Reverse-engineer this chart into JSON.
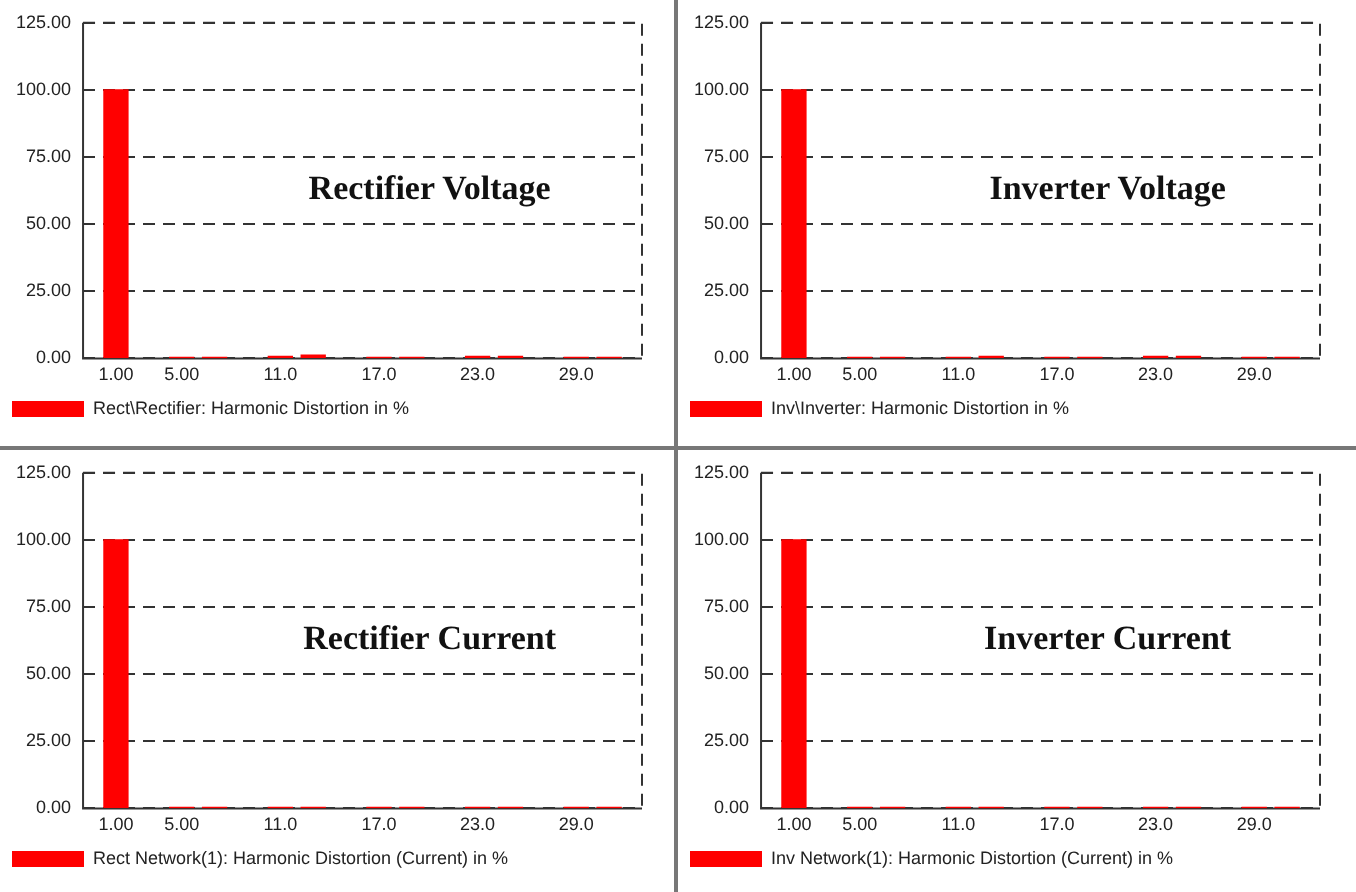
{
  "chart_data": [
    {
      "type": "bar",
      "title": "Rectifier Voltage",
      "x": [
        1,
        5,
        7,
        11,
        13,
        17,
        19,
        23,
        25,
        29,
        31
      ],
      "series": [
        {
          "name": "Rect\\Rectifier: Harmonic Distortion in %",
          "color": "#ff0000",
          "values": [
            100,
            0.3,
            0.3,
            0.7,
            1.2,
            0.3,
            0.3,
            0.7,
            0.7,
            0.3,
            0.3
          ]
        }
      ],
      "xlim": [
        -1,
        33
      ],
      "xticks": [
        {
          "value": 1,
          "label": "1.00"
        },
        {
          "value": 5,
          "label": "5.00"
        },
        {
          "value": 11,
          "label": "11.0"
        },
        {
          "value": 17,
          "label": "17.0"
        },
        {
          "value": 23,
          "label": "23.0"
        },
        {
          "value": 29,
          "label": "29.0"
        }
      ],
      "ylim": [
        0,
        125
      ],
      "yticks": [
        {
          "value": 0,
          "label": "0.00"
        },
        {
          "value": 25,
          "label": "25.00"
        },
        {
          "value": 50,
          "label": "50.00"
        },
        {
          "value": 75,
          "label": "75.00"
        },
        {
          "value": 100,
          "label": "100.00"
        },
        {
          "value": 125,
          "label": "125.00"
        }
      ],
      "grid": "y",
      "legend": "bottom left"
    },
    {
      "type": "bar",
      "title": "Inverter Voltage",
      "x": [
        1,
        5,
        7,
        11,
        13,
        17,
        19,
        23,
        25,
        29,
        31
      ],
      "series": [
        {
          "name": "Inv\\Inverter: Harmonic Distortion in %",
          "color": "#ff0000",
          "values": [
            100,
            0.3,
            0.3,
            0.3,
            0.7,
            0.3,
            0.3,
            0.7,
            0.7,
            0.3,
            0.3
          ]
        }
      ],
      "xlim": [
        -1,
        33
      ],
      "xticks": [
        {
          "value": 1,
          "label": "1.00"
        },
        {
          "value": 5,
          "label": "5.00"
        },
        {
          "value": 11,
          "label": "11.0"
        },
        {
          "value": 17,
          "label": "17.0"
        },
        {
          "value": 23,
          "label": "23.0"
        },
        {
          "value": 29,
          "label": "29.0"
        }
      ],
      "ylim": [
        0,
        125
      ],
      "yticks": [
        {
          "value": 0,
          "label": "0.00"
        },
        {
          "value": 25,
          "label": "25.00"
        },
        {
          "value": 50,
          "label": "50.00"
        },
        {
          "value": 75,
          "label": "75.00"
        },
        {
          "value": 100,
          "label": "100.00"
        },
        {
          "value": 125,
          "label": "125.00"
        }
      ],
      "grid": "y",
      "legend": "bottom left"
    },
    {
      "type": "bar",
      "title": "Rectifier Current",
      "x": [
        1,
        5,
        7,
        11,
        13,
        17,
        19,
        23,
        25,
        29,
        31
      ],
      "series": [
        {
          "name": "Rect Network(1): Harmonic Distortion (Current) in %",
          "color": "#ff0000",
          "values": [
            100,
            0.3,
            0.3,
            0.3,
            0.3,
            0.3,
            0.3,
            0.3,
            0.3,
            0.3,
            0.3
          ]
        }
      ],
      "xlim": [
        -1,
        33
      ],
      "xticks": [
        {
          "value": 1,
          "label": "1.00"
        },
        {
          "value": 5,
          "label": "5.00"
        },
        {
          "value": 11,
          "label": "11.0"
        },
        {
          "value": 17,
          "label": "17.0"
        },
        {
          "value": 23,
          "label": "23.0"
        },
        {
          "value": 29,
          "label": "29.0"
        }
      ],
      "ylim": [
        0,
        125
      ],
      "yticks": [
        {
          "value": 0,
          "label": "0.00"
        },
        {
          "value": 25,
          "label": "25.00"
        },
        {
          "value": 50,
          "label": "50.00"
        },
        {
          "value": 75,
          "label": "75.00"
        },
        {
          "value": 100,
          "label": "100.00"
        },
        {
          "value": 125,
          "label": "125.00"
        }
      ],
      "grid": "y",
      "legend": "bottom left"
    },
    {
      "type": "bar",
      "title": "Inverter Current",
      "x": [
        1,
        5,
        7,
        11,
        13,
        17,
        19,
        23,
        25,
        29,
        31
      ],
      "series": [
        {
          "name": "Inv Network(1): Harmonic Distortion (Current) in %",
          "color": "#ff0000",
          "values": [
            100,
            0.3,
            0.3,
            0.3,
            0.3,
            0.3,
            0.3,
            0.3,
            0.3,
            0.3,
            0.3
          ]
        }
      ],
      "xlim": [
        -1,
        33
      ],
      "xticks": [
        {
          "value": 1,
          "label": "1.00"
        },
        {
          "value": 5,
          "label": "5.00"
        },
        {
          "value": 11,
          "label": "11.0"
        },
        {
          "value": 17,
          "label": "17.0"
        },
        {
          "value": 23,
          "label": "23.0"
        },
        {
          "value": 29,
          "label": "29.0"
        }
      ],
      "ylim": [
        0,
        125
      ],
      "yticks": [
        {
          "value": 0,
          "label": "0.00"
        },
        {
          "value": 25,
          "label": "25.00"
        },
        {
          "value": 50,
          "label": "50.00"
        },
        {
          "value": 75,
          "label": "75.00"
        },
        {
          "value": 100,
          "label": "100.00"
        },
        {
          "value": 125,
          "label": "125.00"
        }
      ],
      "grid": "y",
      "legend": "bottom left"
    }
  ]
}
